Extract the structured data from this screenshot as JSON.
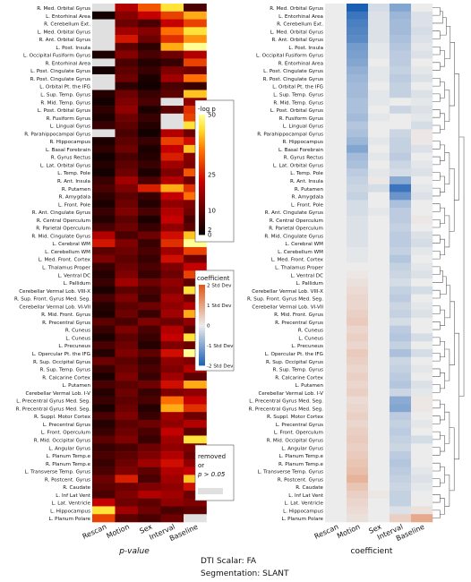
{
  "chart_data": [
    {
      "type": "heatmap",
      "xlabel": "p-value",
      "columns": [
        "Rescan",
        "Motion",
        "Sex",
        "Interval",
        "Baseline"
      ],
      "rows": [
        "R. Med. Orbital Gyrus",
        "L. Entorhinal Area",
        "R. Cerebellum Ext.",
        "L. Med. Orbital Gyrus",
        "R. Ant. Orbital Gyrus",
        "L. Post. Insula",
        "L. Occipital Fusiform Gyrus",
        "R. Entorhinal Area",
        "L. Post. Cingulate Gyrus",
        "R. Post. Cingulate Gyrus",
        "L. Orbital Pt. the IFG",
        "L. Sup. Temp. Gyrus",
        "R. Mid. Temp. Gyrus",
        "L. Post. Orbital Gyrus",
        "R. Fusiform Gyrus",
        "L. Lingual Gyrus",
        "R. Parahippocampal Gyrus",
        "R. Hippocampus",
        "L. Basal Forebrain",
        "R. Gyrus Rectus",
        "L. Lat. Orbital Gyrus",
        "L. Temp. Pole",
        "R. Ant. Insula",
        "R. Putamen",
        "R. Amygdala",
        "L. Front. Pole",
        "R. Ant. Cingulate Gyrus",
        "R. Central Operculum",
        "R. Parietal Operculum",
        "R. Mid. Cingulate Gyrus",
        "L. Cerebral WM",
        "L. Cerebellum WM",
        "L. Med. Front. Cortex",
        "L. Thalamus Proper",
        "L. Ventral DC",
        "L. Pallidum",
        "Cerebellar Vermal Lob. VIII-X",
        "R. Sup. Front. Gyrus Med. Seg.",
        "Cerebellar Vermal Lob. VI-VII",
        "R. Mid. Front. Gyrus",
        "R. Precentral Gyrus",
        "R. Cuneus",
        "L. Cuneus",
        "L. Precuneus",
        "L. Opercular Pt. the IFG",
        "R. Sup. Occipital Gyrus",
        "R. Sup. Temp. Gyrus",
        "R. Calcarine Cortex",
        "L. Putamen",
        "Cerebellar Vermal Lob. I-V",
        "L. Precentral Gyrus Med. Seg.",
        "R. Precentral Gyrus Med. Seg.",
        "R. Suppl. Motor Cortex",
        "L. Precentral Gyrus",
        "L. Front. Operculum",
        "R. Mid. Occipital Gyrus",
        "L. Angular Gyrus",
        "L. Planum Temp.e",
        "R. Planum Temp.e",
        "L. Transverse Temp. Gyrus",
        "R. Postcent. Gyrus",
        "R. Caudate",
        "L. Inf Lat Vent",
        "L. Lat. Ventricle",
        "L. Hippocampus",
        "L. Planum Polare"
      ],
      "value_label": "-log p",
      "colorbar_ticks": [
        0,
        2,
        10,
        25,
        50
      ],
      "colorbar_range": [
        0,
        50
      ],
      "removed_note": [
        "removed",
        "or",
        "p > 0.05"
      ],
      "values": [
        [
          0,
          20,
          32,
          45,
          8
        ],
        [
          2,
          15,
          22,
          30,
          40
        ],
        [
          0,
          12,
          8,
          22,
          30
        ],
        [
          0,
          18,
          15,
          35,
          45
        ],
        [
          0,
          25,
          12,
          28,
          38
        ],
        [
          0,
          10,
          5,
          40,
          50
        ],
        [
          3,
          15,
          8,
          12,
          20
        ],
        [
          0,
          8,
          4,
          6,
          30
        ],
        [
          2,
          10,
          6,
          14,
          12
        ],
        [
          0,
          12,
          3,
          18,
          35
        ],
        [
          0,
          5,
          2,
          8,
          6
        ],
        [
          4,
          12,
          6,
          10,
          42
        ],
        [
          2,
          14,
          8,
          0,
          16
        ],
        [
          5,
          16,
          3,
          10,
          28
        ],
        [
          3,
          12,
          6,
          0,
          30
        ],
        [
          6,
          10,
          4,
          0,
          45
        ],
        [
          0,
          8,
          2,
          20,
          12
        ],
        [
          3,
          10,
          6,
          30,
          24
        ],
        [
          5,
          12,
          3,
          22,
          42
        ],
        [
          2,
          8,
          4,
          26,
          15
        ],
        [
          4,
          10,
          6,
          18,
          14
        ],
        [
          2,
          12,
          3,
          14,
          32
        ],
        [
          6,
          18,
          8,
          20,
          12
        ],
        [
          8,
          14,
          26,
          40,
          28
        ],
        [
          5,
          10,
          6,
          22,
          35
        ],
        [
          3,
          12,
          4,
          16,
          14
        ],
        [
          6,
          14,
          8,
          20,
          12
        ],
        [
          4,
          10,
          3,
          22,
          8
        ],
        [
          8,
          12,
          6,
          16,
          10
        ],
        [
          20,
          8,
          12,
          24,
          42
        ],
        [
          25,
          14,
          6,
          28,
          50
        ],
        [
          10,
          12,
          8,
          18,
          30
        ],
        [
          14,
          10,
          6,
          24,
          12
        ],
        [
          6,
          12,
          8,
          14,
          22
        ],
        [
          4,
          14,
          6,
          12,
          30
        ],
        [
          6,
          18,
          12,
          16,
          10
        ],
        [
          3,
          10,
          8,
          14,
          45
        ],
        [
          8,
          14,
          6,
          18,
          12
        ],
        [
          4,
          10,
          12,
          16,
          20
        ],
        [
          3,
          12,
          6,
          18,
          40
        ],
        [
          10,
          8,
          14,
          12,
          16
        ],
        [
          6,
          14,
          8,
          20,
          10
        ],
        [
          3,
          10,
          6,
          22,
          45
        ],
        [
          8,
          12,
          4,
          14,
          12
        ],
        [
          4,
          14,
          10,
          24,
          50
        ],
        [
          12,
          10,
          6,
          16,
          14
        ],
        [
          6,
          12,
          8,
          14,
          20
        ],
        [
          3,
          14,
          6,
          18,
          10
        ],
        [
          8,
          10,
          12,
          24,
          40
        ],
        [
          4,
          12,
          6,
          14,
          16
        ],
        [
          6,
          10,
          8,
          35,
          22
        ],
        [
          3,
          12,
          4,
          40,
          28
        ],
        [
          8,
          14,
          6,
          18,
          12
        ],
        [
          4,
          10,
          12,
          16,
          20
        ],
        [
          6,
          12,
          8,
          22,
          10
        ],
        [
          10,
          14,
          6,
          18,
          45
        ],
        [
          6,
          8,
          12,
          16,
          14
        ],
        [
          8,
          10,
          14,
          20,
          12
        ],
        [
          6,
          12,
          18,
          24,
          16
        ],
        [
          8,
          14,
          10,
          20,
          22
        ],
        [
          12,
          26,
          8,
          18,
          42
        ],
        [
          10,
          12,
          14,
          16,
          24
        ],
        [
          8,
          14,
          20,
          18,
          12
        ],
        [
          22,
          12,
          10,
          16,
          14
        ],
        [
          45,
          18,
          12,
          8,
          10
        ],
        [
          30,
          10,
          8,
          12,
          0
        ]
      ]
    },
    {
      "type": "heatmap",
      "xlabel": "coefficient",
      "columns": [
        "Rescan",
        "Motion",
        "Sex",
        "Interval",
        "Baseline"
      ],
      "colorbar_ticks": [
        "2 Std Dev",
        "1 Std Dev",
        "0",
        "-1 Std Dev",
        "-2 Std Dev"
      ],
      "colorbar_title": "coefficient",
      "values": [
        [
          0,
          -2.6,
          -0.3,
          -1.3,
          0
        ],
        [
          0,
          -2.2,
          -0.2,
          -1.0,
          -0.2
        ],
        [
          0,
          -2.0,
          -0.2,
          -0.9,
          -0.2
        ],
        [
          0,
          -1.9,
          -0.2,
          -0.9,
          -0.3
        ],
        [
          0,
          -1.8,
          -0.2,
          -0.8,
          -0.2
        ],
        [
          0,
          -1.5,
          -0.1,
          -0.7,
          -0.1
        ],
        [
          0,
          -1.4,
          -0.1,
          -0.6,
          -0.2
        ],
        [
          0,
          -1.3,
          0,
          -0.6,
          0
        ],
        [
          0,
          -1.1,
          -0.1,
          -0.5,
          -0.1
        ],
        [
          0,
          -1.0,
          -0.1,
          -0.6,
          -0.2
        ],
        [
          0,
          -0.9,
          0,
          -0.5,
          0
        ],
        [
          0,
          -0.9,
          -0.1,
          -0.5,
          -0.2
        ],
        [
          0,
          -0.8,
          -0.1,
          0,
          -0.1
        ],
        [
          0,
          -0.8,
          0,
          -0.4,
          -0.2
        ],
        [
          0,
          -0.9,
          -0.1,
          0,
          -0.1
        ],
        [
          0,
          -0.7,
          0,
          0,
          -0.3
        ],
        [
          0,
          -0.8,
          0,
          -0.4,
          0.1
        ],
        [
          0,
          -1.0,
          -0.1,
          -0.5,
          0.1
        ],
        [
          0,
          -1.3,
          0,
          -0.5,
          -0.2
        ],
        [
          0,
          -0.9,
          -0.1,
          -0.6,
          0
        ],
        [
          0,
          -0.8,
          0,
          -0.4,
          -0.1
        ],
        [
          0,
          -0.6,
          -0.1,
          -0.3,
          -0.2
        ],
        [
          0,
          -0.5,
          0.1,
          -1.2,
          0
        ],
        [
          0,
          -0.4,
          -0.3,
          -2.2,
          -0.1
        ],
        [
          0,
          -0.5,
          0,
          -1.6,
          -0.2
        ],
        [
          0,
          -0.3,
          0,
          -0.8,
          0
        ],
        [
          0,
          -0.3,
          -0.1,
          -0.6,
          0
        ],
        [
          0,
          -0.2,
          0,
          -0.6,
          0.1
        ],
        [
          0,
          -0.2,
          0,
          -0.5,
          0
        ],
        [
          0,
          -0.2,
          0,
          -0.6,
          -0.2
        ],
        [
          0,
          -0.2,
          0,
          -0.6,
          -0.3
        ],
        [
          0,
          -0.1,
          0,
          -0.5,
          -0.1
        ],
        [
          0,
          -0.1,
          0,
          -0.7,
          0
        ],
        [
          0,
          0,
          0,
          -0.5,
          -0.1
        ],
        [
          0,
          0.1,
          0,
          -0.4,
          -0.2
        ],
        [
          0,
          0.2,
          0,
          -0.3,
          0
        ],
        [
          0,
          0.3,
          0,
          -0.5,
          -0.3
        ],
        [
          0,
          0.4,
          0,
          -0.6,
          0
        ],
        [
          0,
          0.4,
          0,
          -0.4,
          -0.1
        ],
        [
          0,
          0.5,
          0,
          -0.5,
          -0.2
        ],
        [
          0,
          0.6,
          0,
          -0.3,
          0
        ],
        [
          0,
          0.4,
          0,
          -0.6,
          0
        ],
        [
          0,
          0.5,
          0,
          -0.7,
          -0.3
        ],
        [
          0,
          0.4,
          0,
          -0.5,
          0
        ],
        [
          0,
          0.6,
          0,
          -0.8,
          -0.3
        ],
        [
          0,
          0.5,
          0,
          -0.4,
          0
        ],
        [
          0,
          0.4,
          0,
          -0.5,
          -0.1
        ],
        [
          0,
          0.5,
          0,
          -0.6,
          0
        ],
        [
          0,
          0.4,
          0,
          -0.7,
          -0.2
        ],
        [
          0,
          0.5,
          0,
          -0.4,
          -0.1
        ],
        [
          0,
          0.3,
          0,
          -1.2,
          0.1
        ],
        [
          0,
          0.4,
          0,
          -1.3,
          0.1
        ],
        [
          0,
          0.5,
          0,
          -0.6,
          0
        ],
        [
          0,
          0.4,
          0,
          -0.5,
          -0.1
        ],
        [
          0,
          0.5,
          0,
          -0.6,
          0
        ],
        [
          0,
          0.6,
          0,
          -0.5,
          -0.3
        ],
        [
          0,
          0.5,
          0,
          -0.4,
          0
        ],
        [
          0,
          0.6,
          0,
          -0.6,
          0
        ],
        [
          0,
          0.7,
          0,
          -0.7,
          0
        ],
        [
          0,
          0.8,
          0,
          -0.6,
          -0.1
        ],
        [
          0,
          1.0,
          0,
          -0.5,
          -0.2
        ],
        [
          0,
          0.7,
          0,
          -0.4,
          -0.1
        ],
        [
          0,
          0.5,
          0.1,
          -0.5,
          0
        ],
        [
          0,
          0.4,
          0,
          -0.5,
          0
        ],
        [
          0,
          0.3,
          0,
          -0.2,
          0.2
        ],
        [
          0,
          0.2,
          0,
          0.5,
          1.2
        ]
      ]
    }
  ],
  "caption": {
    "line1": "DTI Scalar: FA",
    "line2": "Segmentation: SLANT"
  },
  "colors": {
    "heat_low": "#000000",
    "heat_mid": "#c00000",
    "heat_high": "#ffff60",
    "removed": "#e0e0e0",
    "coef_pos": "#e05a1a",
    "coef_neg": "#1a5fb4"
  }
}
